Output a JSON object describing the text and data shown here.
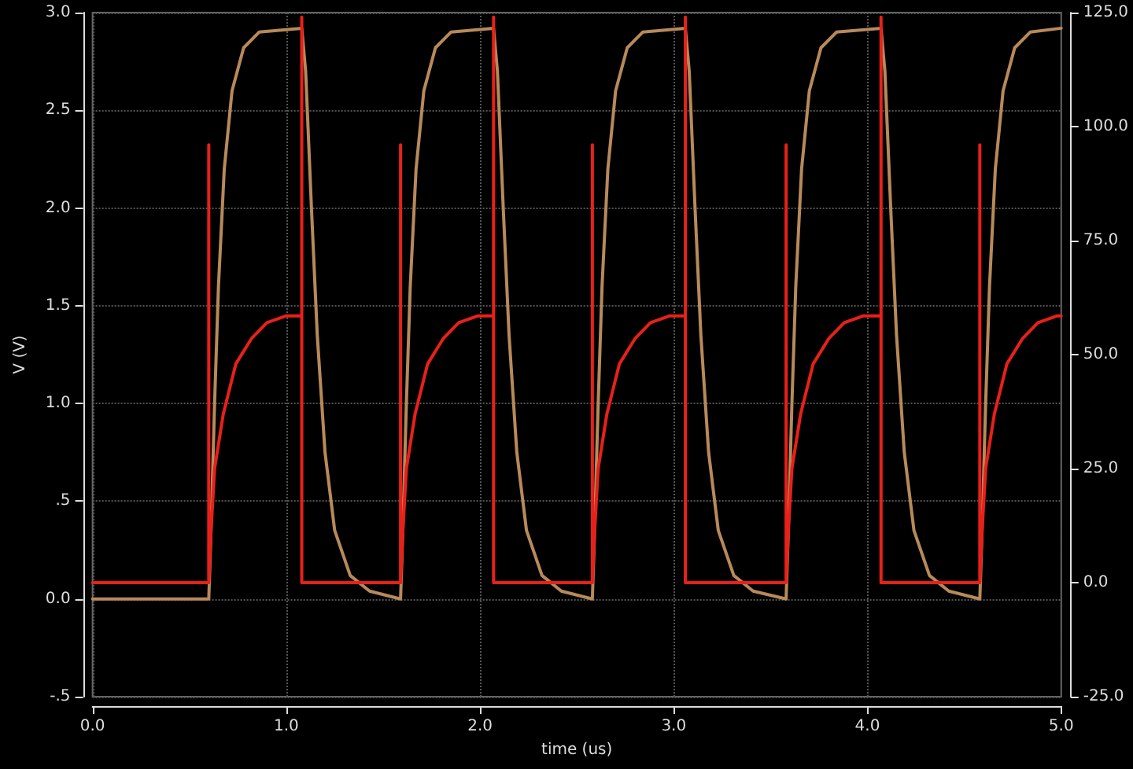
{
  "chart_data": {
    "type": "line",
    "xlabel": "time (us)",
    "ylabel": "V (V)",
    "xlim": [
      0,
      5
    ],
    "xticks": [
      {
        "value": 0,
        "label": "0.0"
      },
      {
        "value": 1,
        "label": "1.0"
      },
      {
        "value": 2,
        "label": "2.0"
      },
      {
        "value": 3,
        "label": "3.0"
      },
      {
        "value": 4,
        "label": "4.0"
      },
      {
        "value": 5,
        "label": "5.0"
      }
    ],
    "ylim": [
      -0.5,
      3
    ],
    "yticks": [
      {
        "value": -0.5,
        "label": "-.5"
      },
      {
        "value": 0,
        "label": "0.0"
      },
      {
        "value": 0.5,
        "label": ".5"
      },
      {
        "value": 1,
        "label": "1.0"
      },
      {
        "value": 1.5,
        "label": "1.5"
      },
      {
        "value": 2,
        "label": "2.0"
      },
      {
        "value": 2.5,
        "label": "2.5"
      },
      {
        "value": 3,
        "label": "3.0"
      }
    ],
    "y2lim": [
      -25,
      125
    ],
    "y2ticks": [
      {
        "value": -25,
        "label": "-25.0"
      },
      {
        "value": 0,
        "label": "0.0"
      },
      {
        "value": 25,
        "label": "25.0"
      },
      {
        "value": 50,
        "label": "50.0"
      },
      {
        "value": 75,
        "label": "75.0"
      },
      {
        "value": 100,
        "label": "100.0"
      },
      {
        "value": 125,
        "label": "125.0"
      }
    ],
    "grid": true,
    "marker": "none",
    "line_style": "solid",
    "series": [
      {
        "color": "#b8895a",
        "x": [
          0,
          0.6,
          0.61,
          0.63,
          0.65,
          0.68,
          0.72,
          0.78,
          0.86,
          1.08,
          1.1,
          1.13,
          1.16,
          1.2,
          1.25,
          1.33,
          1.43,
          1.59,
          1.6,
          1.62,
          1.64,
          1.67,
          1.71,
          1.77,
          1.85,
          2.07,
          2.09,
          2.12,
          2.15,
          2.19,
          2.24,
          2.32,
          2.42,
          2.58,
          2.59,
          2.61,
          2.63,
          2.66,
          2.7,
          2.76,
          2.84,
          3.06,
          3.08,
          3.11,
          3.14,
          3.18,
          3.23,
          3.31,
          3.41,
          3.58,
          3.59,
          3.61,
          3.63,
          3.66,
          3.7,
          3.76,
          3.84,
          4.07,
          4.09,
          4.12,
          4.15,
          4.19,
          4.24,
          4.32,
          4.42,
          4.58,
          4.59,
          4.61,
          4.63,
          4.66,
          4.7,
          4.76,
          4.84,
          5.0
        ],
        "values": [
          0,
          0,
          0.3,
          1.0,
          1.6,
          2.2,
          2.6,
          2.82,
          2.9,
          2.92,
          2.7,
          2.0,
          1.35,
          0.75,
          0.35,
          0.12,
          0.04,
          0,
          0.3,
          1.0,
          1.6,
          2.2,
          2.6,
          2.82,
          2.9,
          2.92,
          2.7,
          2.0,
          1.35,
          0.75,
          0.35,
          0.12,
          0.04,
          0,
          0.3,
          1.0,
          1.6,
          2.2,
          2.6,
          2.82,
          2.9,
          2.92,
          2.7,
          2.0,
          1.35,
          0.75,
          0.35,
          0.12,
          0.04,
          0,
          0.3,
          1.0,
          1.6,
          2.2,
          2.6,
          2.82,
          2.9,
          2.92,
          2.7,
          2.0,
          1.35,
          0.75,
          0.35,
          0.12,
          0.04,
          0,
          0.3,
          1.0,
          1.6,
          2.2,
          2.6,
          2.82,
          2.9,
          2.92
        ]
      },
      {
        "color": "#e8201a",
        "axis": "y2",
        "x": [
          0,
          0.6,
          0.6,
          0.6,
          0.61,
          0.63,
          0.675,
          0.74,
          0.82,
          0.9,
          1.0,
          1.08,
          1.08,
          1.08,
          1.59,
          1.59,
          1.59,
          1.6,
          1.62,
          1.665,
          1.73,
          1.81,
          1.89,
          1.99,
          2.07,
          2.07,
          2.07,
          2.58,
          2.58,
          2.58,
          2.59,
          2.61,
          2.655,
          2.72,
          2.8,
          2.88,
          2.98,
          3.06,
          3.06,
          3.06,
          3.58,
          3.58,
          3.58,
          3.59,
          3.61,
          3.655,
          3.72,
          3.8,
          3.88,
          3.98,
          4.07,
          4.07,
          4.07,
          4.58,
          4.58,
          4.58,
          4.59,
          4.61,
          4.655,
          4.72,
          4.8,
          4.88,
          4.98,
          5.0
        ],
        "values": [
          0,
          0,
          96,
          0,
          10,
          25,
          37,
          48,
          53.5,
          57,
          58.5,
          58.5,
          124,
          0,
          0,
          96,
          0,
          10,
          25,
          37,
          48,
          53.5,
          57,
          58.5,
          58.5,
          124,
          0,
          0,
          96,
          0,
          10,
          25,
          37,
          48,
          53.5,
          57,
          58.5,
          58.5,
          124,
          0,
          0,
          96,
          0,
          10,
          25,
          37,
          48,
          53.5,
          57,
          58.5,
          58.5,
          124,
          0,
          0,
          96,
          0,
          10,
          25,
          37,
          48,
          53.5,
          57,
          58.5,
          58.5
        ]
      }
    ]
  }
}
